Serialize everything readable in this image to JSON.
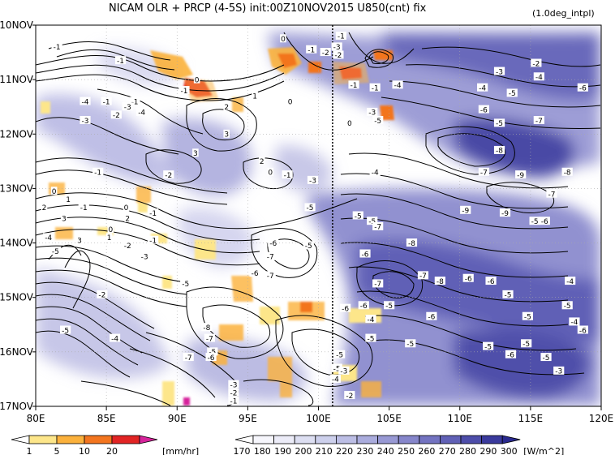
{
  "chart_data": {
    "type": "heatmap",
    "title": "NICAM  OLR + PRCP (4-5S) init:00Z10NOV2015  U850(cnt) fix",
    "subtitle": "(1.0deg_intpl)",
    "x_axis": {
      "range": [
        80,
        120
      ],
      "ticks": [
        80,
        85,
        90,
        95,
        100,
        105,
        110,
        115,
        120
      ],
      "tick_labels": [
        "80E",
        "85E",
        "90E",
        "95E",
        "100E",
        "105E",
        "110E",
        "115E",
        "120E"
      ]
    },
    "y_axis": {
      "range": [
        "10NOV",
        "17NOV"
      ],
      "ticks": [
        10,
        11,
        12,
        13,
        14,
        15,
        16,
        17
      ],
      "tick_labels": [
        "10NOV",
        "11NOV",
        "12NOV",
        "13NOV",
        "14NOV",
        "15NOV",
        "16NOV",
        "17NOV"
      ],
      "direction": "time increases downward"
    },
    "vertical_reference_line": {
      "x": 101,
      "style": "dotted"
    },
    "grid": true,
    "precip_colorbar": {
      "ticks": [
        "1",
        "5",
        "10",
        "20"
      ],
      "unit": "[mm/hr]",
      "colors": [
        "#ffffff",
        "#fde68a",
        "#fbb13c",
        "#f3751f",
        "#e22424",
        "#d6249b"
      ]
    },
    "olr_colorbar": {
      "ticks": [
        "170",
        "180",
        "190",
        "200",
        "210",
        "220",
        "230",
        "240",
        "250",
        "260",
        "270",
        "280",
        "290",
        "300"
      ],
      "unit": "[W/m^2]",
      "colors": [
        "#ffffff",
        "#f6f6fc",
        "#ececf8",
        "#dddff2",
        "#cdd0ec",
        "#bcbee5",
        "#aaacdd",
        "#9899d4",
        "#8686cb",
        "#7373c1",
        "#6060b6",
        "#4d4daa",
        "#3a3a9d",
        "#2a2a8f"
      ]
    },
    "contour_labels": [
      {
        "x": 81.5,
        "y": 10.4,
        "text": "-1"
      },
      {
        "x": 86,
        "y": 10.65,
        "text": "-1"
      },
      {
        "x": 90.5,
        "y": 11.2,
        "text": "-1"
      },
      {
        "x": 83.5,
        "y": 11.4,
        "text": "-4"
      },
      {
        "x": 85,
        "y": 11.4,
        "text": "-1"
      },
      {
        "x": 87,
        "y": 11.4,
        "text": "-1"
      },
      {
        "x": 85.7,
        "y": 11.65,
        "text": "-2"
      },
      {
        "x": 86.5,
        "y": 11.5,
        "text": "-3"
      },
      {
        "x": 87.5,
        "y": 11.6,
        "text": "-4"
      },
      {
        "x": 83.5,
        "y": 11.75,
        "text": "-3"
      },
      {
        "x": 91.4,
        "y": 11.0,
        "text": "0"
      },
      {
        "x": 97.5,
        "y": 10.25,
        "text": "0"
      },
      {
        "x": 98,
        "y": 11.4,
        "text": "0"
      },
      {
        "x": 93.5,
        "y": 11.5,
        "text": "2"
      },
      {
        "x": 95.5,
        "y": 11.3,
        "text": "1"
      },
      {
        "x": 93.5,
        "y": 12.0,
        "text": "3"
      },
      {
        "x": 91.3,
        "y": 12.35,
        "text": "3"
      },
      {
        "x": 96,
        "y": 12.5,
        "text": "2"
      },
      {
        "x": 99.5,
        "y": 10.45,
        "text": "-1"
      },
      {
        "x": 100.5,
        "y": 10.5,
        "text": "-2"
      },
      {
        "x": 101.3,
        "y": 10.4,
        "text": "-3"
      },
      {
        "x": 101.6,
        "y": 10.2,
        "text": "-1"
      },
      {
        "x": 101.4,
        "y": 10.55,
        "text": "-2"
      },
      {
        "x": 102.5,
        "y": 11.1,
        "text": "-1"
      },
      {
        "x": 104.0,
        "y": 11.15,
        "text": "-1"
      },
      {
        "x": 105.6,
        "y": 11.1,
        "text": "-4"
      },
      {
        "x": 102.2,
        "y": 11.8,
        "text": "0"
      },
      {
        "x": 103.8,
        "y": 11.6,
        "text": "-3"
      },
      {
        "x": 104.2,
        "y": 11.75,
        "text": "-5"
      },
      {
        "x": 112.8,
        "y": 10.85,
        "text": "-3"
      },
      {
        "x": 115.4,
        "y": 10.7,
        "text": "-2"
      },
      {
        "x": 115.6,
        "y": 10.95,
        "text": "-4"
      },
      {
        "x": 111.6,
        "y": 11.15,
        "text": "-4"
      },
      {
        "x": 113.7,
        "y": 11.25,
        "text": "-5"
      },
      {
        "x": 118.7,
        "y": 11.15,
        "text": "-6"
      },
      {
        "x": 111.7,
        "y": 11.55,
        "text": "-6"
      },
      {
        "x": 112.8,
        "y": 11.8,
        "text": "-5"
      },
      {
        "x": 115.6,
        "y": 11.75,
        "text": "-7"
      },
      {
        "x": 112.8,
        "y": 12.3,
        "text": "-8"
      },
      {
        "x": 104.0,
        "y": 12.7,
        "text": "-4"
      },
      {
        "x": 111.7,
        "y": 12.7,
        "text": "-7"
      },
      {
        "x": 114.3,
        "y": 12.75,
        "text": "-9"
      },
      {
        "x": 117.6,
        "y": 12.7,
        "text": "-8"
      },
      {
        "x": 96.6,
        "y": 12.7,
        "text": "0"
      },
      {
        "x": 97.8,
        "y": 12.75,
        "text": "-1"
      },
      {
        "x": 99.6,
        "y": 12.85,
        "text": "-3"
      },
      {
        "x": 89.4,
        "y": 12.75,
        "text": "-2"
      },
      {
        "x": 84.4,
        "y": 12.7,
        "text": "-1"
      },
      {
        "x": 81.3,
        "y": 13.05,
        "text": "0"
      },
      {
        "x": 82.3,
        "y": 13.2,
        "text": "1"
      },
      {
        "x": 83.4,
        "y": 13.35,
        "text": "-1"
      },
      {
        "x": 80.6,
        "y": 13.35,
        "text": "2"
      },
      {
        "x": 86.4,
        "y": 13.35,
        "text": "0"
      },
      {
        "x": 88.3,
        "y": 13.45,
        "text": "-1"
      },
      {
        "x": 99.4,
        "y": 13.35,
        "text": "-5"
      },
      {
        "x": 116.5,
        "y": 13.1,
        "text": "-7"
      },
      {
        "x": 110.4,
        "y": 13.4,
        "text": "-9"
      },
      {
        "x": 113.2,
        "y": 13.45,
        "text": "-9"
      },
      {
        "x": 115.3,
        "y": 13.6,
        "text": "-5"
      },
      {
        "x": 116.0,
        "y": 13.6,
        "text": "-6"
      },
      {
        "x": 102.8,
        "y": 13.5,
        "text": "-5"
      },
      {
        "x": 103.8,
        "y": 13.6,
        "text": "-5"
      },
      {
        "x": 104.2,
        "y": 13.7,
        "text": "-7"
      },
      {
        "x": 86.5,
        "y": 13.55,
        "text": "2"
      },
      {
        "x": 82,
        "y": 13.55,
        "text": "3"
      },
      {
        "x": 85.3,
        "y": 13.75,
        "text": "0"
      },
      {
        "x": 85.2,
        "y": 13.9,
        "text": "1"
      },
      {
        "x": 83.1,
        "y": 13.95,
        "text": "3"
      },
      {
        "x": 80.9,
        "y": 13.9,
        "text": "-4"
      },
      {
        "x": 81.4,
        "y": 14.15,
        "text": "-5"
      },
      {
        "x": 88.3,
        "y": 13.95,
        "text": "-1"
      },
      {
        "x": 86.5,
        "y": 14.05,
        "text": "-2"
      },
      {
        "x": 87.7,
        "y": 14.25,
        "text": "-3"
      },
      {
        "x": 96.8,
        "y": 14.0,
        "text": "-6"
      },
      {
        "x": 99.3,
        "y": 14.05,
        "text": "-5"
      },
      {
        "x": 96.6,
        "y": 14.25,
        "text": "-7"
      },
      {
        "x": 106.6,
        "y": 14.0,
        "text": "-8"
      },
      {
        "x": 103.3,
        "y": 14.2,
        "text": "-6"
      },
      {
        "x": 95.5,
        "y": 14.55,
        "text": "-6"
      },
      {
        "x": 96.6,
        "y": 14.6,
        "text": "-7"
      },
      {
        "x": 90.6,
        "y": 14.75,
        "text": "-5"
      },
      {
        "x": 84.7,
        "y": 14.95,
        "text": "-2"
      },
      {
        "x": 104.2,
        "y": 14.75,
        "text": "-7"
      },
      {
        "x": 107.4,
        "y": 14.6,
        "text": "-7"
      },
      {
        "x": 108.6,
        "y": 14.7,
        "text": "-8"
      },
      {
        "x": 110.6,
        "y": 14.65,
        "text": "-6"
      },
      {
        "x": 112.2,
        "y": 14.7,
        "text": "-6"
      },
      {
        "x": 117.8,
        "y": 14.7,
        "text": "-4"
      },
      {
        "x": 113.4,
        "y": 14.95,
        "text": "-5"
      },
      {
        "x": 117.6,
        "y": 15.15,
        "text": "-5"
      },
      {
        "x": 101.9,
        "y": 15.2,
        "text": "-6"
      },
      {
        "x": 103.2,
        "y": 15.15,
        "text": "-6"
      },
      {
        "x": 105.0,
        "y": 15.15,
        "text": "-5"
      },
      {
        "x": 103.7,
        "y": 15.4,
        "text": "-4"
      },
      {
        "x": 108.0,
        "y": 15.35,
        "text": "-6"
      },
      {
        "x": 118.1,
        "y": 15.45,
        "text": "-4"
      },
      {
        "x": 118.7,
        "y": 15.6,
        "text": "-6"
      },
      {
        "x": 114.8,
        "y": 15.35,
        "text": "-5"
      },
      {
        "x": 82.1,
        "y": 15.6,
        "text": "-5"
      },
      {
        "x": 85.6,
        "y": 15.75,
        "text": "-4"
      },
      {
        "x": 92.1,
        "y": 15.55,
        "text": "-8"
      },
      {
        "x": 92.3,
        "y": 15.75,
        "text": "-7"
      },
      {
        "x": 103.7,
        "y": 15.75,
        "text": "-5"
      },
      {
        "x": 106.5,
        "y": 15.85,
        "text": "-5"
      },
      {
        "x": 112.0,
        "y": 15.9,
        "text": "-5"
      },
      {
        "x": 114.7,
        "y": 15.85,
        "text": "-5"
      },
      {
        "x": 113.6,
        "y": 16.05,
        "text": "-6"
      },
      {
        "x": 116.1,
        "y": 16.1,
        "text": "-5"
      },
      {
        "x": 117.0,
        "y": 16.35,
        "text": "-3"
      },
      {
        "x": 92.5,
        "y": 16.0,
        "text": "-5"
      },
      {
        "x": 90.8,
        "y": 16.1,
        "text": "-7"
      },
      {
        "x": 92.4,
        "y": 16.1,
        "text": "-6"
      },
      {
        "x": 101.5,
        "y": 16.05,
        "text": "-5"
      },
      {
        "x": 101.3,
        "y": 16.3,
        "text": "-5"
      },
      {
        "x": 101.8,
        "y": 16.35,
        "text": "-3"
      },
      {
        "x": 101.2,
        "y": 16.5,
        "text": "-4"
      },
      {
        "x": 94.0,
        "y": 16.6,
        "text": "-3"
      },
      {
        "x": 94.0,
        "y": 16.75,
        "text": "-2"
      },
      {
        "x": 94.0,
        "y": 16.9,
        "text": "-1"
      },
      {
        "x": 102.2,
        "y": 16.8,
        "text": "-2"
      }
    ]
  }
}
